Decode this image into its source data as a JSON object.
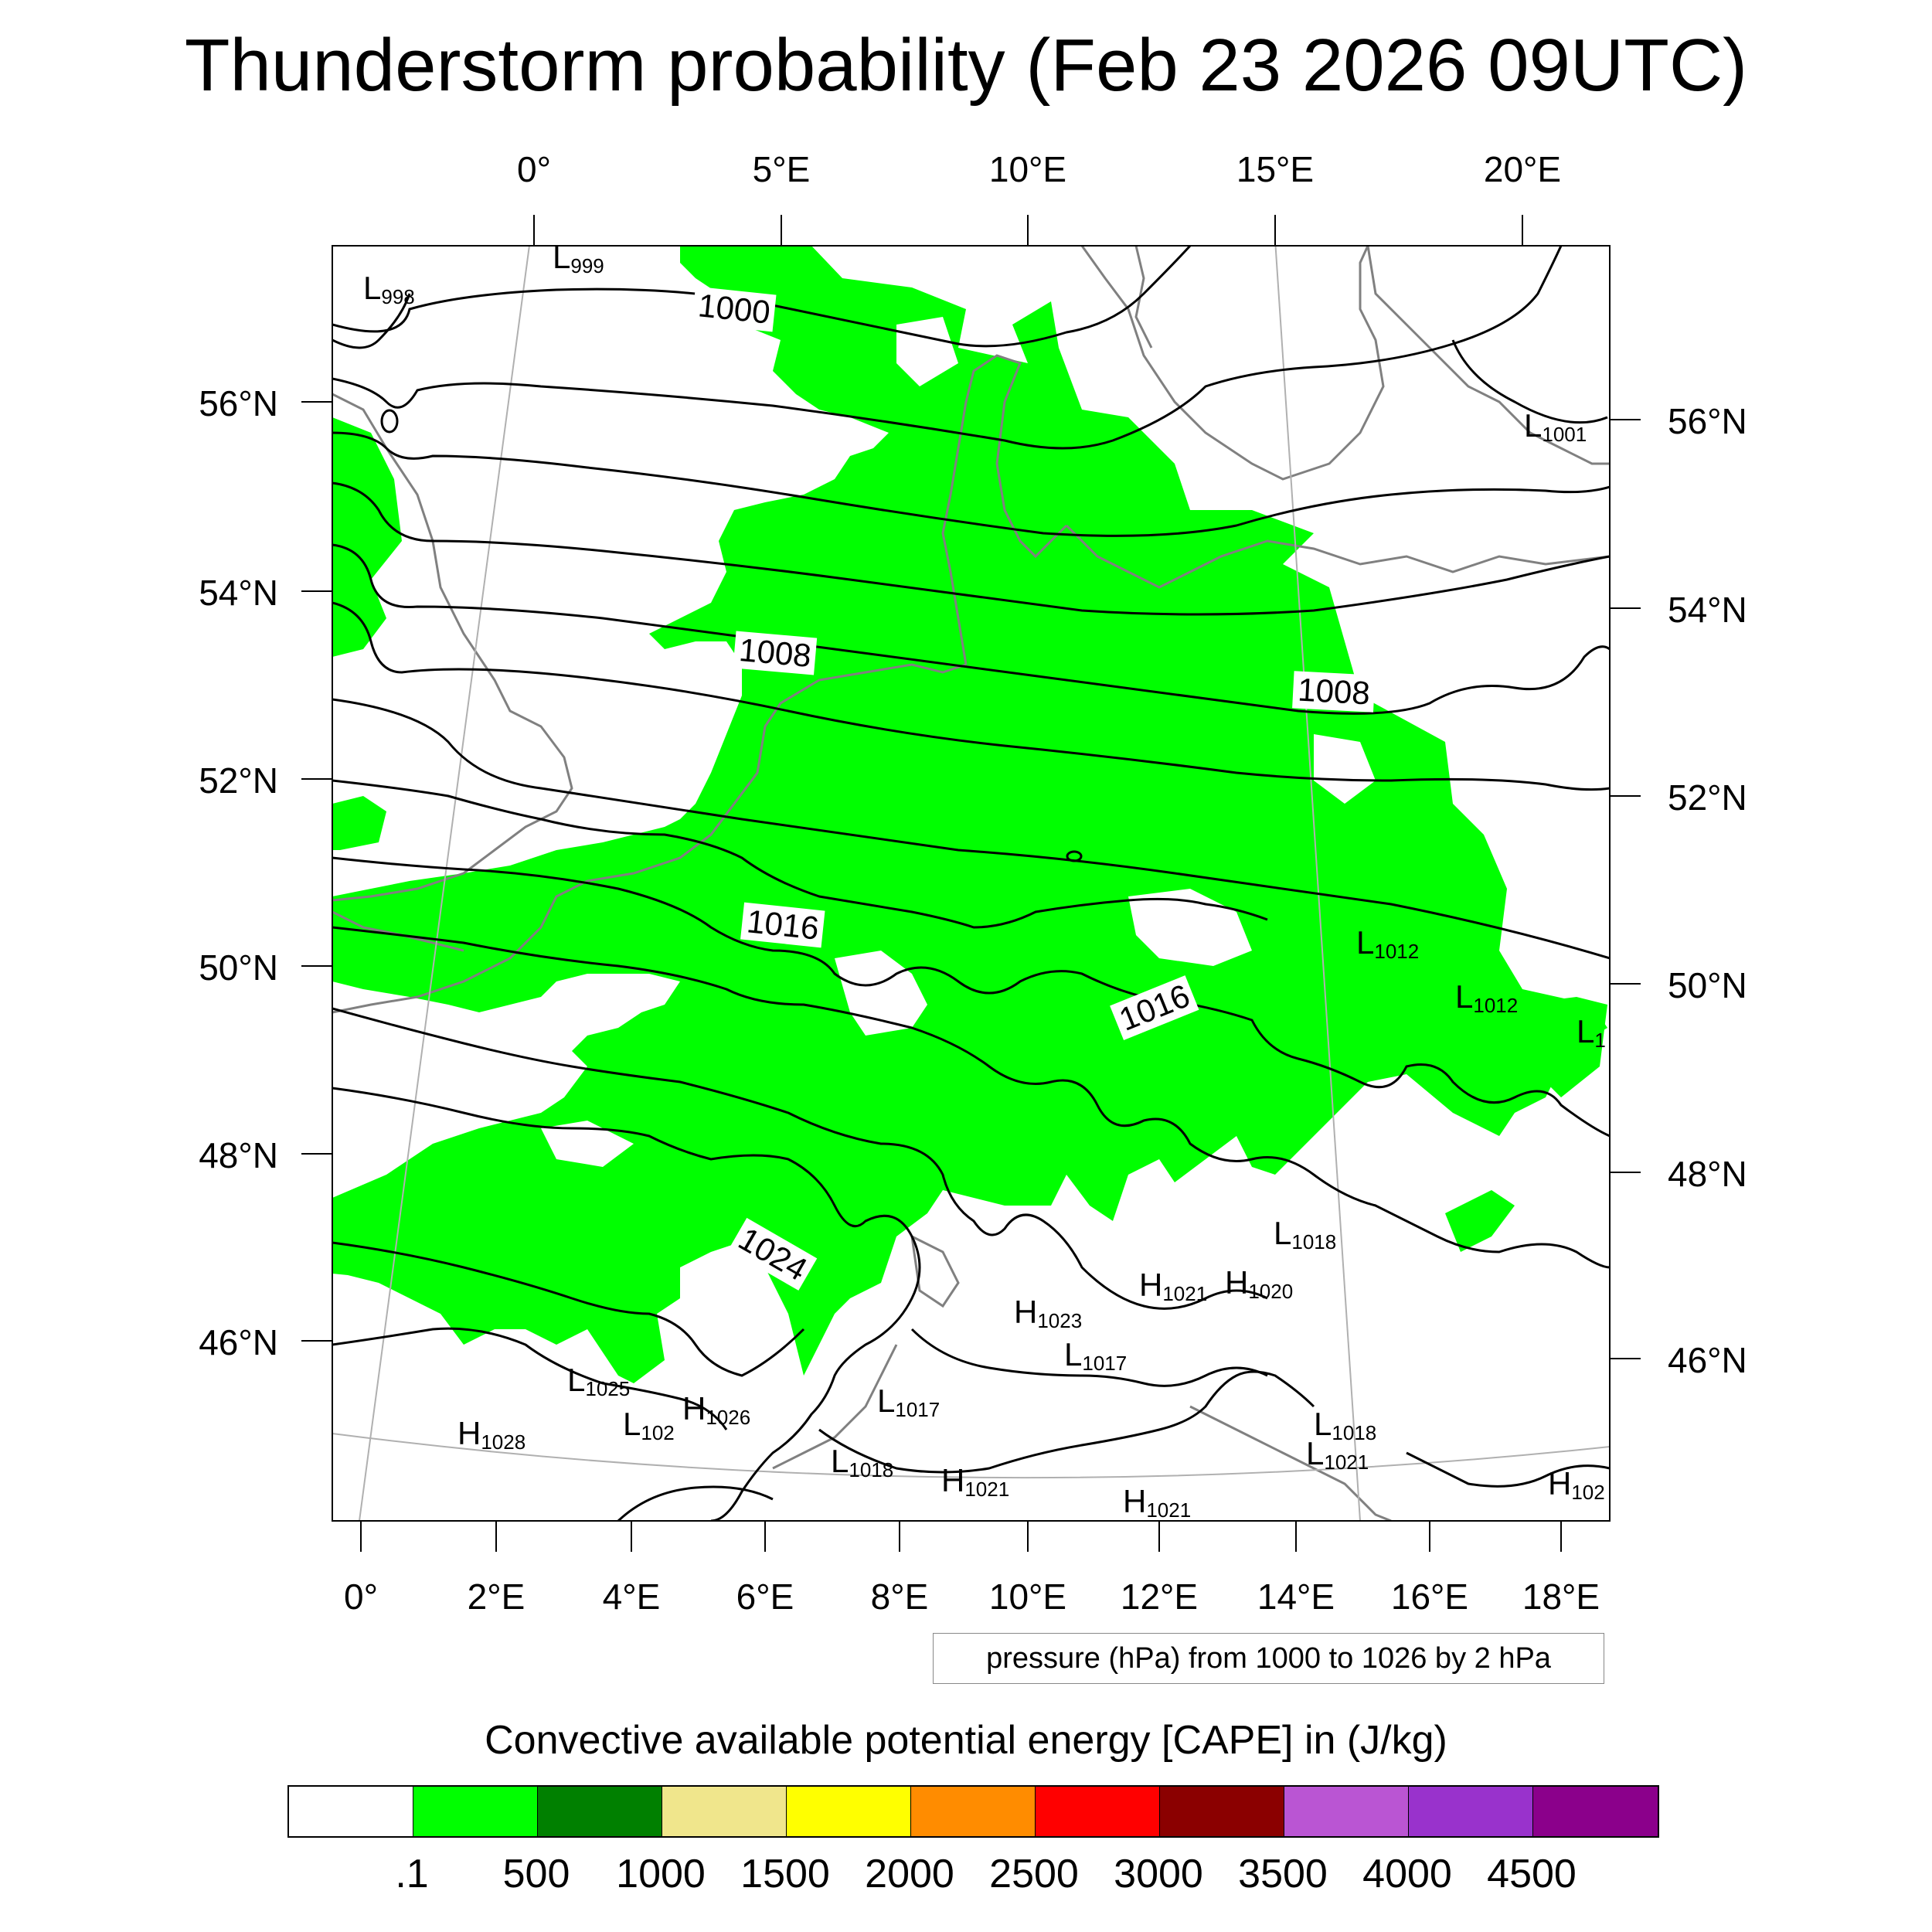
{
  "title": "Thunderstorm probability (Feb 23 2026 09UTC)",
  "axes": {
    "top_lon": [
      "0°",
      "5°E",
      "10°E",
      "15°E",
      "20°E"
    ],
    "bottom_lon": [
      "0°",
      "2°E",
      "4°E",
      "6°E",
      "8°E",
      "10°E",
      "12°E",
      "14°E",
      "16°E",
      "18°E"
    ],
    "left_lat": [
      "56°N",
      "54°N",
      "52°N",
      "50°N",
      "48°N",
      "46°N"
    ],
    "right_lat": [
      "56°N",
      "54°N",
      "52°N",
      "50°N",
      "48°N",
      "46°N"
    ]
  },
  "isobar_labels": [
    "1000",
    "1008",
    "1008",
    "1016",
    "1016",
    "1024"
  ],
  "pressure_centers": [
    {
      "letter": "L",
      "value": "999"
    },
    {
      "letter": "L",
      "value": "998"
    },
    {
      "letter": "L",
      "value": "1001"
    },
    {
      "letter": "L",
      "value": "1012"
    },
    {
      "letter": "L",
      "value": "1012"
    },
    {
      "letter": "L",
      "value": "1"
    },
    {
      "letter": "L",
      "value": "1018"
    },
    {
      "letter": "H",
      "value": "1021"
    },
    {
      "letter": "H",
      "value": "1020"
    },
    {
      "letter": "H",
      "value": "1023"
    },
    {
      "letter": "L",
      "value": "1017"
    },
    {
      "letter": "L",
      "value": "1025"
    },
    {
      "letter": "L",
      "value": "102"
    },
    {
      "letter": "H",
      "value": "1026"
    },
    {
      "letter": "H",
      "value": "1028"
    },
    {
      "letter": "L",
      "value": "1017"
    },
    {
      "letter": "L",
      "value": "1018"
    },
    {
      "letter": "H",
      "value": "1021"
    },
    {
      "letter": "H",
      "value": "1021"
    },
    {
      "letter": "L",
      "value": "1018"
    },
    {
      "letter": "L",
      "value": "1021"
    },
    {
      "letter": "H",
      "value": "102"
    }
  ],
  "contour_caption": "pressure (hPa) from 1000 to 1026 by 2 hPa",
  "legend": {
    "title": "Convective available potential energy [CAPE] in (J/kg)",
    "levels": [
      ".1",
      "500",
      "1000",
      "1500",
      "2000",
      "2500",
      "3000",
      "3500",
      "4000",
      "4500"
    ],
    "colors": [
      "#ffffff",
      "#00ff00",
      "#008000",
      "#f0e68c",
      "#ffff00",
      "#ff8c00",
      "#ff0000",
      "#8b0000",
      "#ba55d3",
      "#9932cc",
      "#8b008b"
    ]
  },
  "colors": {
    "cape_fill": "#00ff00",
    "coastline": "#808080",
    "isobar": "#000000"
  }
}
